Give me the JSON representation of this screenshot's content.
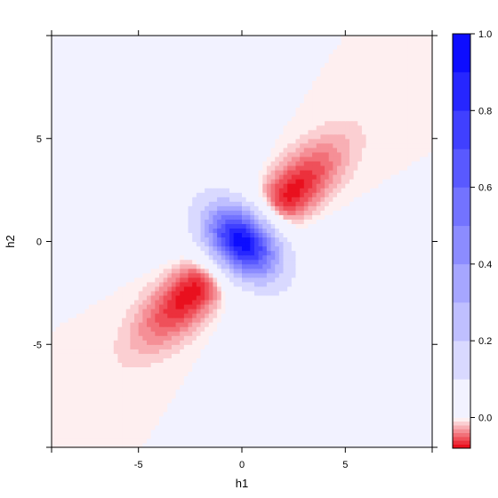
{
  "chart_data": {
    "type": "heatmap",
    "title": "",
    "xlabel": "h1",
    "ylabel": "h2",
    "xlim": [
      -9.2,
      9.2
    ],
    "ylim": [
      -10.0,
      10.0
    ],
    "x_ticks": [
      -5,
      0,
      5
    ],
    "y_ticks": [
      -5,
      0,
      5
    ],
    "x_tick_labels": [
      "-5",
      "0",
      "5"
    ],
    "y_tick_labels": [
      "-5",
      "0",
      "5"
    ],
    "zlim": [
      -0.08,
      1.0
    ],
    "colorbar": {
      "ticks": [
        0.0,
        0.2,
        0.4,
        0.6,
        0.8,
        1.0
      ],
      "tick_labels": [
        "0.0",
        "0.2",
        "0.4",
        "0.6",
        "0.8",
        "1.0"
      ],
      "levels": [
        -0.08,
        -0.07,
        -0.06,
        -0.05,
        -0.04,
        -0.03,
        -0.02,
        -0.01,
        0.0,
        0.1,
        0.2,
        0.3,
        0.4,
        0.5,
        0.6,
        0.7,
        0.8,
        0.9,
        1.0
      ],
      "low_color": "#e8000f",
      "mid_color": "#ffffff",
      "high_color": "#0000ff"
    },
    "features": [
      {
        "kind": "peak",
        "h1": 0.0,
        "h2": 0.0,
        "value": 1.0
      },
      {
        "kind": "trough",
        "h1": 2.2,
        "h2": 2.2,
        "value": -0.08
      },
      {
        "kind": "trough",
        "h1": -2.4,
        "h2": -2.4,
        "value": -0.08
      },
      {
        "kind": "lobe",
        "h1": -3.5,
        "h2": 3.5,
        "value": 0.06
      },
      {
        "kind": "lobe",
        "h1": 3.5,
        "h2": -3.5,
        "value": 0.06
      }
    ],
    "grid": false,
    "legend": "colorbar-right"
  }
}
